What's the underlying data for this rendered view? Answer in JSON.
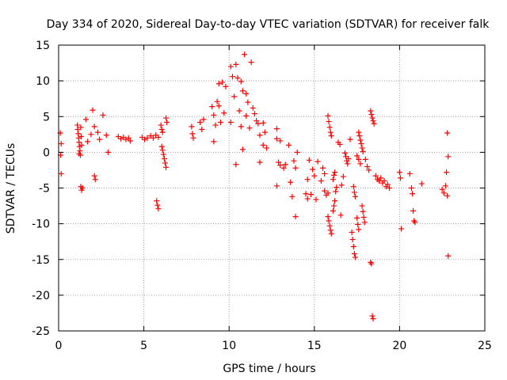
{
  "chart_data": {
    "type": "scatter",
    "title": "Day 334 of 2020, Sidereal Day-to-day VTEC variation (SDTVAR) for receiver falk",
    "xlabel": "GPS time / hours",
    "ylabel": "SDTVAR / TECUs",
    "xlim": [
      0,
      25
    ],
    "ylim": [
      -25,
      15
    ],
    "xticks": [
      0,
      5,
      10,
      15,
      20,
      25
    ],
    "yticks": [
      -25,
      -20,
      -15,
      -10,
      -5,
      0,
      5,
      10,
      15
    ],
    "grid": true,
    "marker": "+",
    "color": "#ff0000",
    "series": [
      {
        "name": "SDTVAR",
        "points": [
          [
            0.1,
            2.7
          ],
          [
            0.15,
            1.2
          ],
          [
            0.12,
            -0.4
          ],
          [
            0.15,
            -3.0
          ],
          [
            1.1,
            3.8
          ],
          [
            1.12,
            3.2
          ],
          [
            1.15,
            2.6
          ],
          [
            1.18,
            2.0
          ],
          [
            1.2,
            1.4
          ],
          [
            1.22,
            0.8
          ],
          [
            1.25,
            0.2
          ],
          [
            1.28,
            -0.4
          ],
          [
            1.3,
            3.5
          ],
          [
            1.32,
            2.2
          ],
          [
            1.35,
            1.0
          ],
          [
            1.2,
            -0.2
          ],
          [
            1.3,
            -4.8
          ],
          [
            1.35,
            -5.3
          ],
          [
            1.4,
            -5.0
          ],
          [
            1.6,
            4.6
          ],
          [
            1.7,
            1.5
          ],
          [
            1.9,
            2.5
          ],
          [
            2.0,
            5.9
          ],
          [
            2.1,
            3.6
          ],
          [
            2.1,
            -3.3
          ],
          [
            2.15,
            -3.8
          ],
          [
            2.3,
            2.8
          ],
          [
            2.4,
            1.8
          ],
          [
            2.6,
            5.2
          ],
          [
            2.8,
            2.4
          ],
          [
            2.9,
            0.0
          ],
          [
            3.5,
            2.2
          ],
          [
            3.65,
            1.9
          ],
          [
            3.8,
            2.1
          ],
          [
            3.95,
            1.8
          ],
          [
            4.1,
            2.0
          ],
          [
            4.2,
            1.6
          ],
          [
            4.9,
            2.1
          ],
          [
            5.05,
            1.8
          ],
          [
            5.2,
            2.0
          ],
          [
            5.4,
            2.3
          ],
          [
            5.55,
            2.0
          ],
          [
            5.7,
            2.4
          ],
          [
            5.85,
            2.1
          ],
          [
            5.75,
            -6.8
          ],
          [
            5.8,
            -7.4
          ],
          [
            5.85,
            -7.9
          ],
          [
            6.0,
            3.8
          ],
          [
            6.05,
            3.2
          ],
          [
            6.1,
            2.8
          ],
          [
            6.05,
            0.8
          ],
          [
            6.1,
            0.3
          ],
          [
            6.15,
            -0.3
          ],
          [
            6.2,
            -0.9
          ],
          [
            6.25,
            -1.5
          ],
          [
            6.3,
            -2.1
          ],
          [
            6.3,
            4.8
          ],
          [
            6.35,
            4.2
          ],
          [
            7.8,
            3.6
          ],
          [
            7.85,
            2.6
          ],
          [
            7.9,
            2.0
          ],
          [
            8.3,
            4.2
          ],
          [
            8.4,
            3.2
          ],
          [
            8.5,
            4.6
          ],
          [
            9.0,
            6.4
          ],
          [
            9.1,
            5.2
          ],
          [
            9.1,
            1.5
          ],
          [
            9.2,
            3.8
          ],
          [
            9.3,
            7.1
          ],
          [
            9.4,
            6.5
          ],
          [
            9.4,
            9.6
          ],
          [
            9.5,
            4.2
          ],
          [
            9.6,
            9.8
          ],
          [
            9.7,
            5.5
          ],
          [
            9.8,
            9.2
          ],
          [
            10.1,
            12.0
          ],
          [
            10.1,
            4.2
          ],
          [
            10.2,
            10.6
          ],
          [
            10.3,
            7.8
          ],
          [
            10.4,
            12.3
          ],
          [
            10.4,
            -1.7
          ],
          [
            10.5,
            10.4
          ],
          [
            10.6,
            5.8
          ],
          [
            10.7,
            9.9
          ],
          [
            10.7,
            3.6
          ],
          [
            10.8,
            8.6
          ],
          [
            10.8,
            0.4
          ],
          [
            10.9,
            13.7
          ],
          [
            11.0,
            8.2
          ],
          [
            11.0,
            5.1
          ],
          [
            11.1,
            7.0
          ],
          [
            11.2,
            3.4
          ],
          [
            11.3,
            12.6
          ],
          [
            11.4,
            6.2
          ],
          [
            11.5,
            5.4
          ],
          [
            11.6,
            4.4
          ],
          [
            11.7,
            4.0
          ],
          [
            11.8,
            2.4
          ],
          [
            11.8,
            -1.4
          ],
          [
            12.0,
            4.1
          ],
          [
            12.0,
            1.0
          ],
          [
            12.1,
            2.8
          ],
          [
            12.2,
            0.6
          ],
          [
            12.8,
            3.3
          ],
          [
            12.8,
            1.9
          ],
          [
            12.8,
            -4.7
          ],
          [
            12.9,
            -1.4
          ],
          [
            13.0,
            1.6
          ],
          [
            13.0,
            -1.8
          ],
          [
            13.2,
            -2.2
          ],
          [
            13.3,
            -1.7
          ],
          [
            13.5,
            1.0
          ],
          [
            13.6,
            -4.2
          ],
          [
            13.7,
            -6.2
          ],
          [
            13.8,
            -1.2
          ],
          [
            13.9,
            -2.2
          ],
          [
            13.9,
            -9.0
          ],
          [
            14.0,
            0.0
          ],
          [
            14.5,
            -5.8
          ],
          [
            14.6,
            -6.5
          ],
          [
            14.6,
            -3.8
          ],
          [
            14.7,
            -1.1
          ],
          [
            14.8,
            -5.9
          ],
          [
            14.9,
            -2.4
          ],
          [
            15.0,
            -3.3
          ],
          [
            15.1,
            -6.6
          ],
          [
            15.2,
            -1.3
          ],
          [
            15.4,
            -4.0
          ],
          [
            15.5,
            -2.2
          ],
          [
            15.6,
            -3.0
          ],
          [
            15.6,
            -5.4
          ],
          [
            15.7,
            -6.0
          ],
          [
            15.8,
            -5.7
          ],
          [
            15.8,
            5.1
          ],
          [
            15.85,
            4.3
          ],
          [
            15.9,
            3.5
          ],
          [
            15.95,
            2.8
          ],
          [
            16.0,
            2.3
          ],
          [
            15.8,
            -9.0
          ],
          [
            15.85,
            -9.6
          ],
          [
            15.9,
            -10.3
          ],
          [
            15.95,
            -10.9
          ],
          [
            16.0,
            -11.4
          ],
          [
            16.1,
            -8.2
          ],
          [
            16.15,
            -7.5
          ],
          [
            16.2,
            -6.8
          ],
          [
            16.25,
            -5.5
          ],
          [
            16.3,
            -4.9
          ],
          [
            16.1,
            -3.8
          ],
          [
            16.15,
            -3.2
          ],
          [
            16.2,
            -2.8
          ],
          [
            16.4,
            1.4
          ],
          [
            16.5,
            1.1
          ],
          [
            16.55,
            -8.8
          ],
          [
            16.6,
            -4.6
          ],
          [
            16.7,
            -3.4
          ],
          [
            16.8,
            -0.1
          ],
          [
            16.85,
            -0.6
          ],
          [
            16.9,
            -1.2
          ],
          [
            16.95,
            -1.6
          ],
          [
            17.0,
            -0.9
          ],
          [
            17.1,
            1.8
          ],
          [
            17.3,
            -4.8
          ],
          [
            17.35,
            -5.6
          ],
          [
            17.4,
            -6.2
          ],
          [
            17.2,
            -11.2
          ],
          [
            17.25,
            -12.2
          ],
          [
            17.3,
            -13.2
          ],
          [
            17.35,
            -14.2
          ],
          [
            17.4,
            -14.7
          ],
          [
            17.5,
            -9.2
          ],
          [
            17.55,
            -10.1
          ],
          [
            17.6,
            -10.8
          ],
          [
            17.6,
            2.8
          ],
          [
            17.65,
            2.3
          ],
          [
            17.7,
            1.7
          ],
          [
            17.75,
            1.2
          ],
          [
            17.8,
            0.6
          ],
          [
            17.85,
            0.1
          ],
          [
            17.5,
            -0.5
          ],
          [
            17.6,
            -1.0
          ],
          [
            17.7,
            -1.6
          ],
          [
            17.8,
            -7.5
          ],
          [
            17.85,
            -8.3
          ],
          [
            17.9,
            -9.1
          ],
          [
            17.95,
            -9.8
          ],
          [
            18.0,
            -1.0
          ],
          [
            18.1,
            -2.0
          ],
          [
            18.2,
            -2.5
          ],
          [
            18.3,
            5.8
          ],
          [
            18.35,
            5.3
          ],
          [
            18.4,
            4.8
          ],
          [
            18.45,
            4.4
          ],
          [
            18.5,
            4.0
          ],
          [
            18.3,
            -15.4
          ],
          [
            18.35,
            -15.6
          ],
          [
            18.4,
            -22.9
          ],
          [
            18.45,
            -23.3
          ],
          [
            18.6,
            -3.3
          ],
          [
            18.7,
            -3.8
          ],
          [
            18.8,
            -4.0
          ],
          [
            18.9,
            -3.6
          ],
          [
            19.0,
            -4.3
          ],
          [
            19.1,
            -4.0
          ],
          [
            19.2,
            -4.8
          ],
          [
            19.3,
            -4.5
          ],
          [
            19.4,
            -5.0
          ],
          [
            20.0,
            -2.8
          ],
          [
            20.05,
            -3.6
          ],
          [
            20.1,
            -10.7
          ],
          [
            20.6,
            -3.0
          ],
          [
            20.7,
            -5.0
          ],
          [
            20.75,
            -5.8
          ],
          [
            20.8,
            -8.2
          ],
          [
            20.85,
            -9.6
          ],
          [
            20.9,
            -9.8
          ],
          [
            21.3,
            -4.4
          ],
          [
            22.5,
            -5.2
          ],
          [
            22.6,
            -5.7
          ],
          [
            22.7,
            -4.7
          ],
          [
            22.75,
            -2.8
          ],
          [
            22.8,
            2.7
          ],
          [
            22.85,
            -0.6
          ],
          [
            22.8,
            -6.1
          ],
          [
            22.85,
            -14.5
          ]
        ]
      }
    ]
  }
}
